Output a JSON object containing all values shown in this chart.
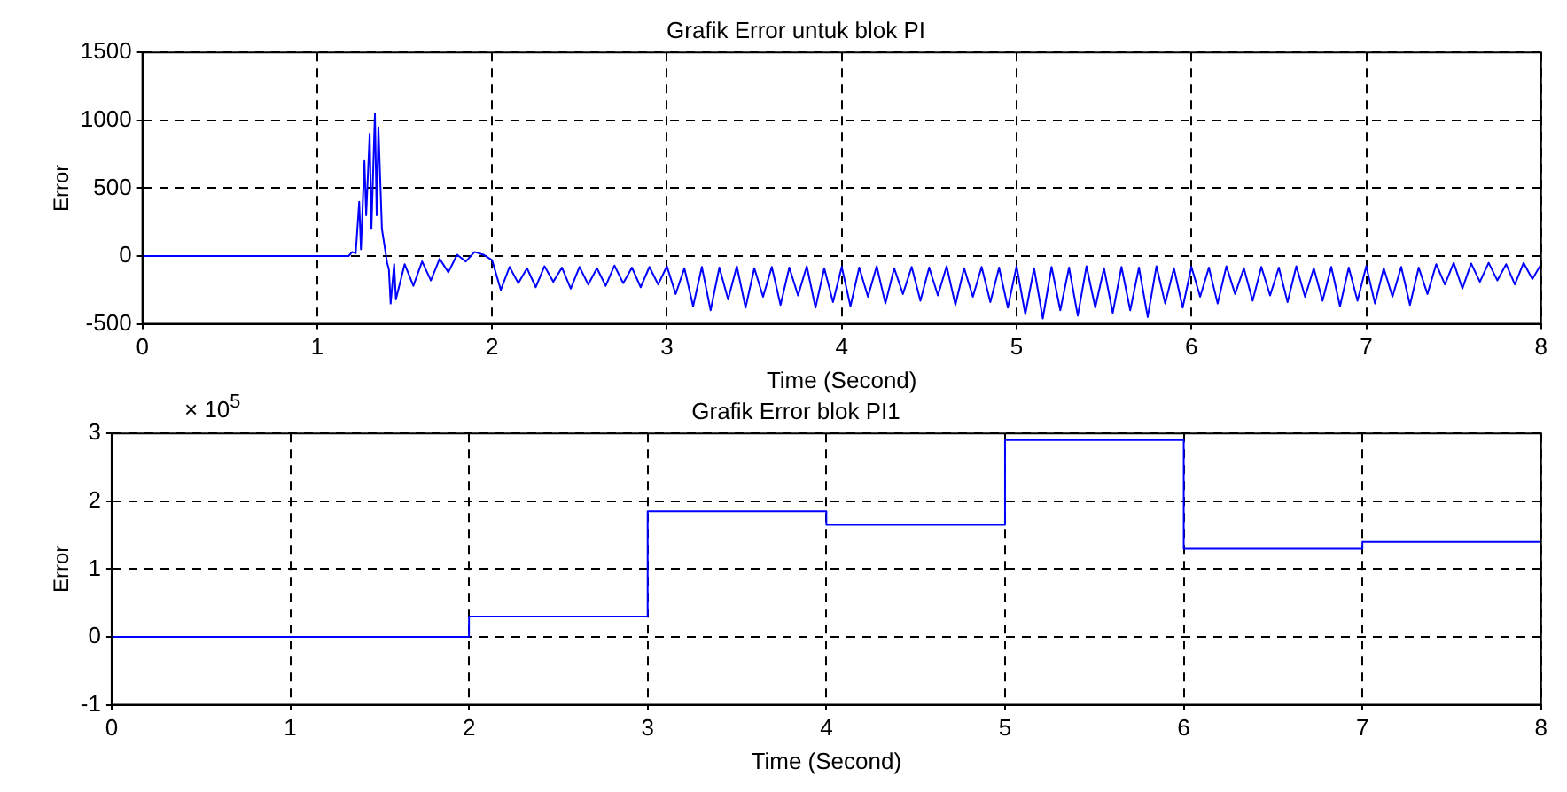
{
  "chart_data": [
    {
      "type": "line",
      "title": "Grafik Error untuk blok PI",
      "xlabel": "Time (Second)",
      "ylabel": "Error",
      "xlim": [
        0,
        8
      ],
      "ylim": [
        -500,
        1500
      ],
      "xticks": [
        0,
        1,
        2,
        3,
        4,
        5,
        6,
        7,
        8
      ],
      "yticks": [
        -500,
        0,
        500,
        1000,
        1500
      ],
      "grid": true,
      "x": [
        0,
        1.18,
        1.2,
        1.22,
        1.24,
        1.25,
        1.27,
        1.28,
        1.3,
        1.31,
        1.33,
        1.34,
        1.35,
        1.37,
        1.4,
        1.41,
        1.42,
        1.44,
        1.45,
        1.5,
        1.55,
        1.6,
        1.65,
        1.7,
        1.75,
        1.8,
        1.85,
        1.9,
        1.95,
        2.0,
        2.05,
        2.1,
        2.15,
        2.2,
        2.25,
        2.3,
        2.35,
        2.4,
        2.45,
        2.5,
        2.55,
        2.6,
        2.65,
        2.7,
        2.75,
        2.8,
        2.85,
        2.9,
        2.95,
        3.0,
        3.05,
        3.1,
        3.15,
        3.2,
        3.25,
        3.3,
        3.35,
        3.4,
        3.45,
        3.5,
        3.55,
        3.6,
        3.65,
        3.7,
        3.75,
        3.8,
        3.85,
        3.9,
        3.95,
        4.0,
        4.05,
        4.1,
        4.15,
        4.2,
        4.25,
        4.3,
        4.35,
        4.4,
        4.45,
        4.5,
        4.55,
        4.6,
        4.65,
        4.7,
        4.75,
        4.8,
        4.85,
        4.9,
        4.95,
        5.0,
        5.05,
        5.1,
        5.15,
        5.2,
        5.25,
        5.3,
        5.35,
        5.4,
        5.45,
        5.5,
        5.55,
        5.6,
        5.65,
        5.7,
        5.75,
        5.8,
        5.85,
        5.9,
        5.95,
        6.0,
        6.05,
        6.1,
        6.15,
        6.2,
        6.25,
        6.3,
        6.35,
        6.4,
        6.45,
        6.5,
        6.55,
        6.6,
        6.65,
        6.7,
        6.75,
        6.8,
        6.85,
        6.9,
        6.95,
        7.0,
        7.05,
        7.1,
        7.15,
        7.2,
        7.25,
        7.3,
        7.35,
        7.4,
        7.45,
        7.5,
        7.55,
        7.6,
        7.65,
        7.7,
        7.75,
        7.8,
        7.85,
        7.9,
        7.95,
        8.0
      ],
      "series": [
        {
          "color": "#0000ff",
          "values": [
            0,
            0,
            30,
            20,
            400,
            50,
            700,
            300,
            900,
            200,
            1050,
            300,
            950,
            200,
            -50,
            -100,
            -350,
            -60,
            -320,
            -60,
            -220,
            -40,
            -180,
            -20,
            -120,
            10,
            -40,
            30,
            10,
            -30,
            -250,
            -80,
            -200,
            -90,
            -230,
            -75,
            -190,
            -85,
            -240,
            -80,
            -210,
            -90,
            -220,
            -70,
            -200,
            -85,
            -230,
            -80,
            -210,
            -75,
            -280,
            -90,
            -370,
            -80,
            -400,
            -85,
            -320,
            -75,
            -380,
            -90,
            -300,
            -80,
            -360,
            -85,
            -290,
            -75,
            -380,
            -90,
            -340,
            -80,
            -370,
            -85,
            -300,
            -75,
            -350,
            -90,
            -280,
            -80,
            -330,
            -85,
            -290,
            -75,
            -360,
            -90,
            -300,
            -80,
            -340,
            -85,
            -380,
            -75,
            -430,
            -90,
            -460,
            -80,
            -400,
            -85,
            -440,
            -75,
            -380,
            -90,
            -420,
            -80,
            -400,
            -85,
            -450,
            -75,
            -350,
            -90,
            -380,
            -80,
            -300,
            -85,
            -350,
            -75,
            -280,
            -90,
            -330,
            -80,
            -290,
            -85,
            -340,
            -75,
            -300,
            -90,
            -330,
            -80,
            -370,
            -85,
            -330,
            -75,
            -350,
            -90,
            -300,
            -80,
            -360,
            -85,
            -280,
            -60,
            -210,
            -50,
            -240,
            -55,
            -190,
            -50,
            -180,
            -60,
            -210,
            -50,
            -170,
            -60
          ]
        }
      ]
    },
    {
      "type": "step",
      "title": "Grafik Error blok PI1",
      "xlabel": "Time (Second)",
      "ylabel": "Error",
      "xlim": [
        0,
        8
      ],
      "ylim": [
        -1,
        3
      ],
      "xticks": [
        0,
        1,
        2,
        3,
        4,
        5,
        6,
        7,
        8
      ],
      "yticks": [
        -1,
        0,
        1,
        2,
        3
      ],
      "grid": true,
      "annotations": [
        "× 10$^{5}$"
      ],
      "x": [
        0,
        2,
        3,
        4,
        5,
        6,
        7,
        8
      ],
      "series": [
        {
          "color": "#0000ff",
          "values": [
            0,
            0.3,
            1.85,
            1.65,
            2.9,
            1.3,
            1.4,
            1.4
          ]
        }
      ]
    }
  ]
}
